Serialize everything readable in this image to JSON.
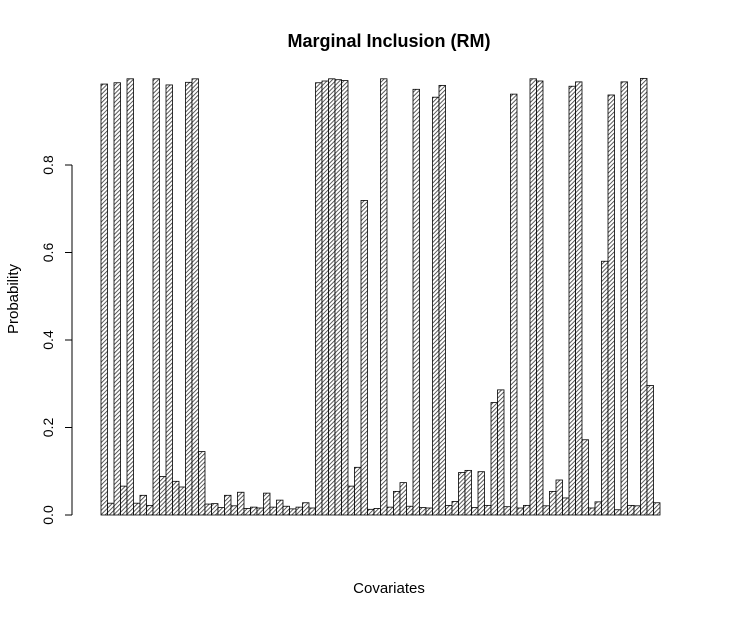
{
  "chart_data": {
    "type": "bar",
    "title": "Marginal Inclusion (RM)",
    "xlabel": "Covariates",
    "ylabel": "Probability",
    "ylim": [
      0,
      1.0
    ],
    "yticks": [
      0.0,
      0.2,
      0.4,
      0.6,
      0.8
    ],
    "ytick_labels": [
      "0.0",
      "0.2",
      "0.4",
      "0.6",
      "0.8"
    ],
    "bar_fill": "hatched",
    "values": [
      0.985,
      0.027,
      0.988,
      0.066,
      0.997,
      0.027,
      0.045,
      0.022,
      0.997,
      0.088,
      0.983,
      0.077,
      0.064,
      0.989,
      0.997,
      0.145,
      0.025,
      0.026,
      0.017,
      0.045,
      0.021,
      0.052,
      0.015,
      0.018,
      0.016,
      0.05,
      0.018,
      0.034,
      0.02,
      0.014,
      0.018,
      0.028,
      0.016,
      0.988,
      0.992,
      0.997,
      0.995,
      0.993,
      0.066,
      0.109,
      0.719,
      0.013,
      0.015,
      0.997,
      0.018,
      0.054,
      0.074,
      0.02,
      0.973,
      0.017,
      0.016,
      0.955,
      0.982,
      0.022,
      0.031,
      0.097,
      0.102,
      0.017,
      0.099,
      0.022,
      0.257,
      0.286,
      0.019,
      0.962,
      0.016,
      0.022,
      0.997,
      0.992,
      0.021,
      0.054,
      0.08,
      0.039,
      0.98,
      0.99,
      0.172,
      0.016,
      0.03,
      0.58,
      0.96,
      0.012,
      0.99,
      0.022,
      0.021,
      0.998,
      0.296,
      0.028
    ]
  }
}
